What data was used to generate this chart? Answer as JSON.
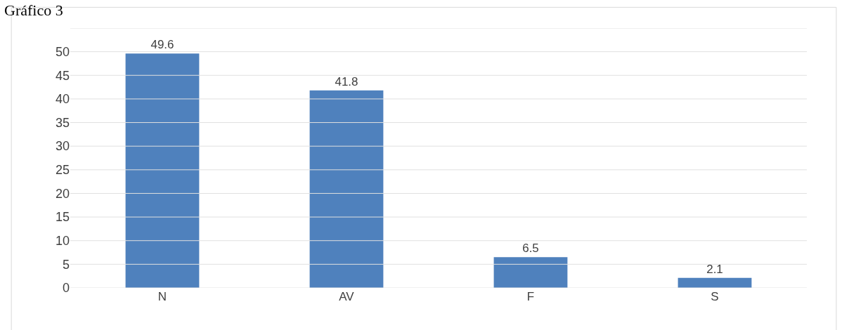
{
  "chart_data": {
    "type": "bar",
    "title": "Gráfico 3",
    "categories": [
      "N",
      "AV",
      "F",
      "S"
    ],
    "values": [
      49.6,
      41.8,
      6.5,
      2.1
    ],
    "color": "#4f81bd",
    "ylim": [
      0,
      55
    ],
    "yticks": [
      0,
      5,
      10,
      15,
      20,
      25,
      30,
      35,
      40,
      45,
      50,
      {
        "value": 55,
        "label": null
      }
    ],
    "grid": "y",
    "data_labels": true
  }
}
